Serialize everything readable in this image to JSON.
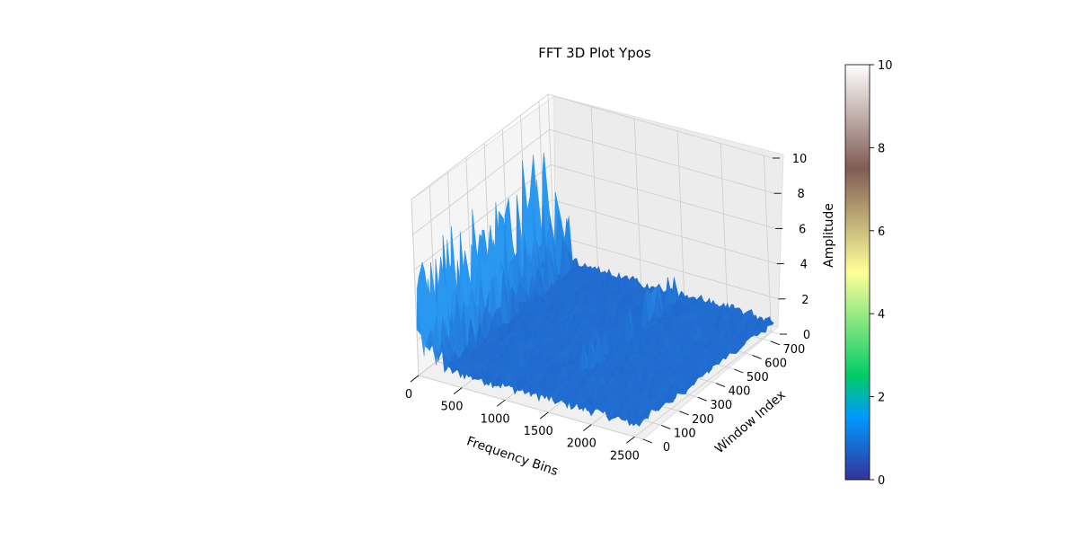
{
  "chart_data": {
    "type": "surface3d",
    "title": "FFT 3D Plot Ypos",
    "xlabel": "Frequency Bins",
    "ylabel": "Window Index",
    "zlabel": "Amplitude",
    "xlim": [
      0,
      2600
    ],
    "ylim": [
      0,
      750
    ],
    "zlim": [
      0,
      10
    ],
    "x_ticks": [
      "0",
      "500",
      "1000",
      "1500",
      "2000",
      "2500"
    ],
    "y_ticks": [
      "0",
      "100",
      "200",
      "300",
      "400",
      "500",
      "600",
      "700"
    ],
    "z_ticks": [
      "0",
      "2",
      "4",
      "6",
      "8",
      "10"
    ],
    "colorbar": {
      "ticks": [
        "0",
        "2",
        "4",
        "6",
        "8",
        "10"
      ],
      "colormap": "terrain",
      "range": [
        0,
        10
      ]
    },
    "surface": {
      "description_values": {
        "baseline_amplitude": 0.8,
        "noise_amplitude": 0.6,
        "low_freq_peak_max": 9.0,
        "low_freq_peak_region_max_bin": 300
      }
    },
    "grid": true,
    "colors": {
      "surface": "#1f66c9",
      "surface_light": "#2a8cf0",
      "pane": "#f2f2f2",
      "grid": "#cfcfcf"
    }
  }
}
